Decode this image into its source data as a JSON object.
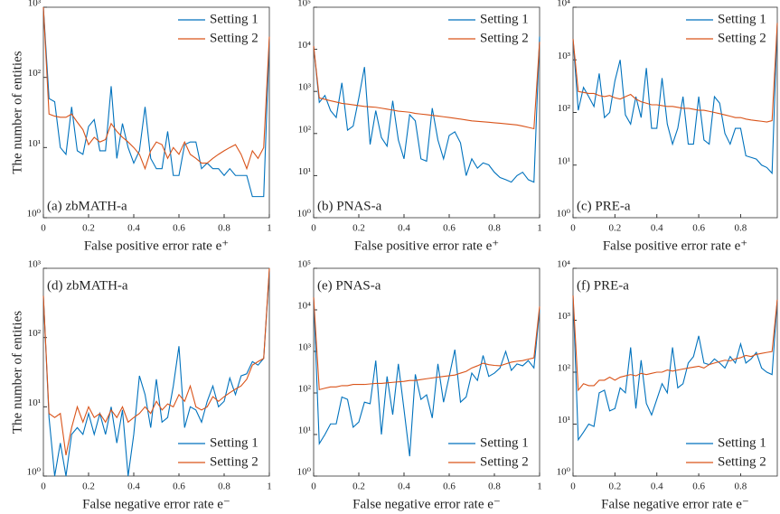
{
  "chart_data": [
    {
      "type": "line",
      "annotation": "(a) zbMATH-a",
      "annotation_location": "southwest",
      "xlabel": "False positive error rate e⁺",
      "ylabel": "The number of entities",
      "log_y": true,
      "legend_location": "northeast",
      "x": [
        0,
        0.025,
        0.05,
        0.075,
        0.1,
        0.125,
        0.15,
        0.175,
        0.2,
        0.225,
        0.25,
        0.275,
        0.3,
        0.325,
        0.35,
        0.375,
        0.4,
        0.425,
        0.45,
        0.475,
        0.5,
        0.525,
        0.55,
        0.575,
        0.6,
        0.625,
        0.65,
        0.675,
        0.7,
        0.725,
        0.75,
        0.775,
        0.8,
        0.825,
        0.85,
        0.875,
        0.9,
        0.925,
        0.95,
        0.975,
        1
      ],
      "series": [
        {
          "name": "Setting 1",
          "color": "#0072bd",
          "values": [
            1000,
            50,
            45,
            10,
            8,
            38,
            9,
            8,
            20,
            25,
            9,
            9,
            75,
            7,
            22,
            10,
            6,
            9,
            38,
            7,
            5,
            5,
            17,
            4,
            4,
            11,
            12,
            12,
            5,
            6,
            5,
            5,
            4,
            5,
            4,
            4,
            4,
            2,
            2,
            2,
            350
          ]
        },
        {
          "name": "Setting 2",
          "color": "#d95319",
          "values": [
            1000,
            30,
            28,
            27,
            27,
            30,
            23,
            18,
            11,
            14,
            12,
            13,
            22,
            17,
            14,
            12,
            10,
            8,
            5,
            9,
            12,
            11,
            7,
            10,
            8,
            12,
            8,
            7,
            6,
            6,
            7,
            8,
            9,
            10,
            11,
            8,
            5,
            9,
            7,
            10,
            380
          ]
        }
      ],
      "xlim": [
        0,
        1
      ],
      "xticks": [
        0,
        0.2,
        0.4,
        0.6,
        0.8,
        1
      ],
      "ylim": [
        1,
        1000
      ],
      "yticks": [
        {
          "value": 1,
          "label": "10⁰"
        },
        {
          "value": 10,
          "label": "10¹"
        },
        {
          "value": 100,
          "label": "10²"
        },
        {
          "value": 1000,
          "label": "10³"
        }
      ]
    },
    {
      "type": "line",
      "annotation": "(b) PNAS-a",
      "annotation_location": "southwest",
      "xlabel": "False positive error rate e⁺",
      "log_y": true,
      "legend_location": "northeast",
      "x": [
        0,
        0.025,
        0.05,
        0.075,
        0.1,
        0.125,
        0.15,
        0.175,
        0.2,
        0.225,
        0.25,
        0.275,
        0.3,
        0.325,
        0.35,
        0.375,
        0.4,
        0.425,
        0.45,
        0.475,
        0.5,
        0.525,
        0.55,
        0.575,
        0.6,
        0.625,
        0.65,
        0.675,
        0.7,
        0.725,
        0.75,
        0.775,
        0.8,
        0.825,
        0.85,
        0.875,
        0.9,
        0.925,
        0.95,
        0.975,
        1
      ],
      "series": [
        {
          "name": "Setting 1",
          "color": "#0072bd",
          "values": [
            12000,
            550,
            800,
            350,
            240,
            1600,
            120,
            150,
            700,
            3800,
            55,
            350,
            80,
            50,
            600,
            70,
            25,
            280,
            200,
            25,
            22,
            400,
            70,
            25,
            90,
            110,
            60,
            10,
            25,
            15,
            20,
            18,
            12,
            9,
            8,
            7,
            10,
            12,
            8,
            7,
            20000
          ]
        },
        {
          "name": "Setting 2",
          "color": "#d95319",
          "values": [
            12000,
            700,
            650,
            600,
            560,
            520,
            500,
            480,
            460,
            440,
            430,
            420,
            400,
            380,
            360,
            340,
            330,
            320,
            300,
            290,
            280,
            270,
            260,
            250,
            240,
            230,
            220,
            210,
            200,
            195,
            190,
            185,
            180,
            175,
            170,
            165,
            160,
            150,
            140,
            130,
            15000
          ]
        }
      ],
      "xlim": [
        0,
        1
      ],
      "xticks": [
        0,
        0.2,
        0.4,
        0.6,
        0.8,
        1
      ],
      "ylim": [
        1,
        100000
      ],
      "yticks": [
        {
          "value": 1,
          "label": "10⁰"
        },
        {
          "value": 10,
          "label": "10¹"
        },
        {
          "value": 100,
          "label": "10²"
        },
        {
          "value": 1000,
          "label": "10³"
        },
        {
          "value": 10000,
          "label": "10⁴"
        },
        {
          "value": 100000,
          "label": "10⁵"
        }
      ]
    },
    {
      "type": "line",
      "annotation": "(c) PRE-a",
      "annotation_location": "southwest",
      "xlabel": "False positive error rate e⁺",
      "log_y": true,
      "legend_location": "northeast",
      "x": [
        0,
        0.025,
        0.05,
        0.075,
        0.1,
        0.125,
        0.15,
        0.175,
        0.2,
        0.225,
        0.25,
        0.275,
        0.3,
        0.325,
        0.35,
        0.375,
        0.4,
        0.425,
        0.45,
        0.475,
        0.5,
        0.525,
        0.55,
        0.575,
        0.6,
        0.625,
        0.65,
        0.675,
        0.7,
        0.725,
        0.75,
        0.775,
        0.8,
        0.825,
        0.85,
        0.875,
        0.9,
        0.925,
        0.95,
        0.975
      ],
      "series": [
        {
          "name": "Setting 1",
          "color": "#0072bd",
          "values": [
            2500,
            110,
            300,
            200,
            130,
            550,
            80,
            100,
            400,
            1000,
            90,
            60,
            200,
            80,
            700,
            50,
            50,
            450,
            60,
            25,
            50,
            200,
            25,
            25,
            200,
            30,
            25,
            200,
            150,
            40,
            25,
            50,
            50,
            15,
            14,
            13,
            10,
            9,
            7,
            5000
          ]
        },
        {
          "name": "Setting 2",
          "color": "#d95319",
          "values": [
            2500,
            250,
            240,
            230,
            230,
            210,
            200,
            210,
            190,
            180,
            200,
            220,
            180,
            160,
            150,
            140,
            140,
            135,
            130,
            130,
            125,
            120,
            120,
            115,
            110,
            110,
            105,
            100,
            95,
            90,
            85,
            80,
            80,
            75,
            72,
            70,
            68,
            66,
            70,
            5000
          ]
        }
      ],
      "xlim": [
        0,
        0.975
      ],
      "xticks": [
        0,
        0.2,
        0.4,
        0.6,
        0.8
      ],
      "ylim": [
        1,
        10000
      ],
      "yticks": [
        {
          "value": 1,
          "label": "10⁰"
        },
        {
          "value": 10,
          "label": "10¹"
        },
        {
          "value": 100,
          "label": "10²"
        },
        {
          "value": 1000,
          "label": "10³"
        },
        {
          "value": 10000,
          "label": "10⁴"
        }
      ]
    },
    {
      "type": "line",
      "annotation": "(d) zbMATH-a",
      "annotation_location": "northwest",
      "xlabel": "False negative error rate e⁻",
      "ylabel": "The number of entities",
      "log_y": true,
      "legend_location": "southeast",
      "x": [
        0,
        0.025,
        0.05,
        0.075,
        0.1,
        0.125,
        0.15,
        0.175,
        0.2,
        0.225,
        0.25,
        0.275,
        0.3,
        0.325,
        0.35,
        0.375,
        0.4,
        0.425,
        0.45,
        0.475,
        0.5,
        0.525,
        0.55,
        0.575,
        0.6,
        0.625,
        0.65,
        0.675,
        0.7,
        0.725,
        0.75,
        0.775,
        0.8,
        0.825,
        0.85,
        0.875,
        0.9,
        0.925,
        0.95,
        0.975,
        1
      ],
      "series": [
        {
          "name": "Setting 1",
          "color": "#0072bd",
          "values": [
            400,
            7,
            1,
            3,
            1,
            4,
            5,
            4,
            8,
            4,
            8,
            4,
            10,
            3,
            9,
            1,
            4,
            28,
            15,
            5,
            25,
            6,
            7,
            20,
            75,
            5,
            10,
            9,
            6,
            12,
            20,
            10,
            12,
            26,
            15,
            28,
            30,
            45,
            40,
            50,
            900
          ]
        },
        {
          "name": "Setting 2",
          "color": "#d95319",
          "values": [
            400,
            8,
            7,
            8,
            2,
            5,
            10,
            6,
            10,
            7,
            8,
            6,
            9,
            7,
            10,
            6,
            7,
            8,
            10,
            8,
            12,
            9,
            11,
            10,
            15,
            12,
            20,
            10,
            9,
            10,
            14,
            12,
            14,
            16,
            18,
            20,
            25,
            40,
            45,
            50,
            1000
          ]
        }
      ],
      "xlim": [
        0,
        1
      ],
      "xticks": [
        0,
        0.2,
        0.4,
        0.6,
        0.8,
        1
      ],
      "ylim": [
        1,
        1000
      ],
      "yticks": [
        {
          "value": 1,
          "label": "10⁰"
        },
        {
          "value": 10,
          "label": "10¹"
        },
        {
          "value": 100,
          "label": "10²"
        },
        {
          "value": 1000,
          "label": "10³"
        }
      ]
    },
    {
      "type": "line",
      "annotation": "(e) PNAS-a",
      "annotation_location": "northwest",
      "xlabel": "False negative error rate e⁻",
      "log_y": true,
      "legend_location": "southeast",
      "x": [
        0,
        0.025,
        0.05,
        0.075,
        0.1,
        0.125,
        0.15,
        0.175,
        0.2,
        0.225,
        0.25,
        0.275,
        0.3,
        0.325,
        0.35,
        0.375,
        0.4,
        0.425,
        0.45,
        0.475,
        0.5,
        0.525,
        0.55,
        0.575,
        0.6,
        0.625,
        0.65,
        0.675,
        0.7,
        0.725,
        0.75,
        0.775,
        0.8,
        0.825,
        0.85,
        0.875,
        0.9,
        0.925,
        0.95,
        0.975,
        1
      ],
      "series": [
        {
          "name": "Setting 1",
          "color": "#0072bd",
          "values": [
            20000,
            6,
            10,
            18,
            18,
            80,
            70,
            15,
            20,
            60,
            55,
            600,
            10,
            250,
            30,
            500,
            40,
            3,
            280,
            70,
            90,
            25,
            500,
            60,
            250,
            1100,
            60,
            80,
            300,
            200,
            800,
            250,
            300,
            400,
            1000,
            350,
            500,
            450,
            600,
            400,
            10000
          ]
        },
        {
          "name": "Setting 2",
          "color": "#d95319",
          "values": [
            20000,
            120,
            130,
            140,
            140,
            150,
            150,
            160,
            160,
            160,
            165,
            170,
            170,
            175,
            180,
            185,
            190,
            200,
            200,
            210,
            220,
            230,
            240,
            250,
            260,
            270,
            300,
            330,
            400,
            450,
            520,
            480,
            460,
            450,
            500,
            550,
            580,
            600,
            650,
            700,
            12000
          ]
        }
      ],
      "xlim": [
        0,
        1
      ],
      "xticks": [
        0,
        0.2,
        0.4,
        0.6,
        0.8,
        1
      ],
      "ylim": [
        1,
        100000
      ],
      "yticks": [
        {
          "value": 1,
          "label": "10⁰"
        },
        {
          "value": 10,
          "label": "10¹"
        },
        {
          "value": 100,
          "label": "10²"
        },
        {
          "value": 1000,
          "label": "10³"
        },
        {
          "value": 10000,
          "label": "10⁴"
        },
        {
          "value": 100000,
          "label": "10⁵"
        }
      ]
    },
    {
      "type": "line",
      "annotation": "(f) PRE-a",
      "annotation_location": "northwest",
      "xlabel": "False negative error rate e⁻",
      "log_y": true,
      "legend_location": "southeast",
      "x": [
        0,
        0.025,
        0.05,
        0.075,
        0.1,
        0.125,
        0.15,
        0.175,
        0.2,
        0.225,
        0.25,
        0.275,
        0.3,
        0.325,
        0.35,
        0.375,
        0.4,
        0.425,
        0.45,
        0.475,
        0.5,
        0.525,
        0.55,
        0.575,
        0.6,
        0.625,
        0.65,
        0.675,
        0.7,
        0.725,
        0.75,
        0.775,
        0.8,
        0.825,
        0.85,
        0.875,
        0.9,
        0.925,
        0.95,
        0.975
      ],
      "series": [
        {
          "name": "Setting 1",
          "color": "#0072bd",
          "values": [
            3000,
            5,
            7,
            10,
            9,
            40,
            45,
            18,
            20,
            50,
            40,
            300,
            20,
            170,
            25,
            15,
            30,
            60,
            40,
            300,
            50,
            60,
            150,
            200,
            500,
            150,
            140,
            180,
            150,
            120,
            200,
            150,
            350,
            150,
            180,
            240,
            120,
            100,
            90,
            2500
          ]
        },
        {
          "name": "Setting 2",
          "color": "#d95319",
          "values": [
            3000,
            45,
            60,
            55,
            55,
            70,
            70,
            80,
            70,
            80,
            85,
            90,
            85,
            95,
            90,
            95,
            100,
            100,
            110,
            105,
            110,
            115,
            120,
            125,
            130,
            120,
            140,
            150,
            160,
            170,
            165,
            180,
            190,
            210,
            200,
            220,
            230,
            240,
            250,
            2500
          ]
        }
      ],
      "xlim": [
        0,
        0.975
      ],
      "xticks": [
        0,
        0.2,
        0.4,
        0.6,
        0.8
      ],
      "ylim": [
        1,
        10000
      ],
      "yticks": [
        {
          "value": 1,
          "label": "10⁰"
        },
        {
          "value": 10,
          "label": "10¹"
        },
        {
          "value": 100,
          "label": "10²"
        },
        {
          "value": 1000,
          "label": "10³"
        },
        {
          "value": 10000,
          "label": "10⁴"
        }
      ]
    }
  ]
}
